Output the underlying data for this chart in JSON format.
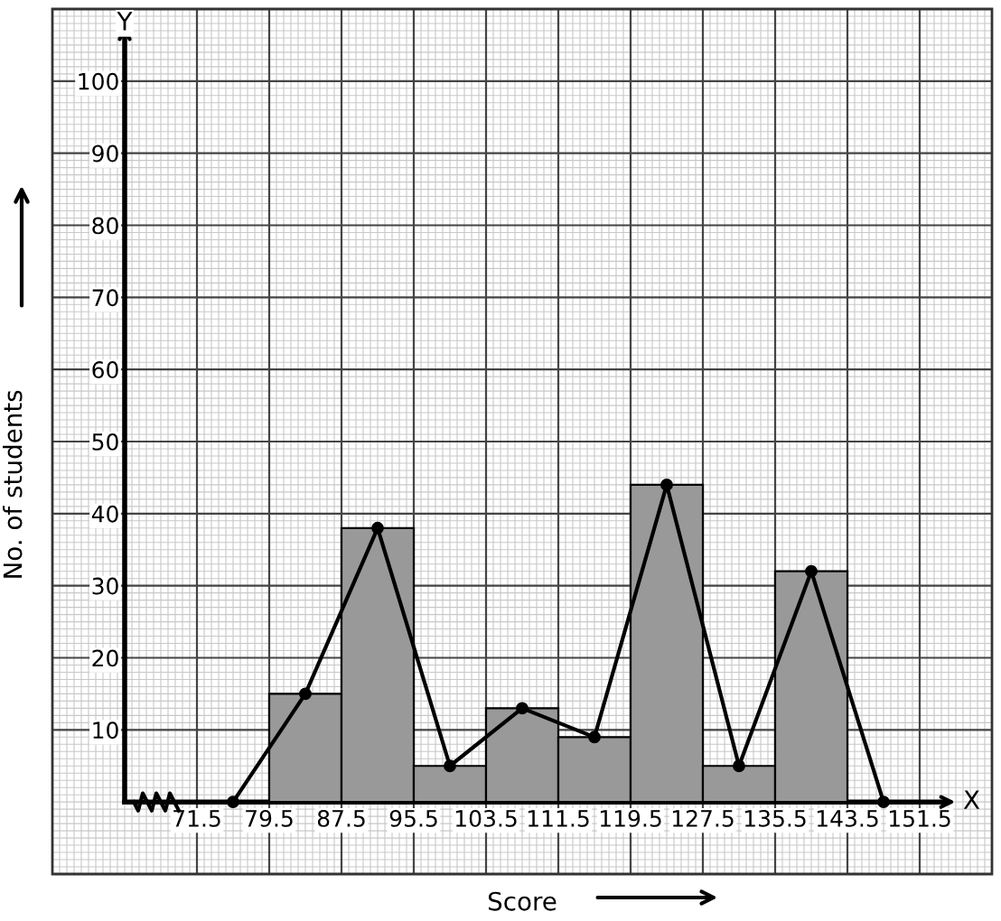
{
  "chart_data": {
    "type": "histogram",
    "xlabel": "Score",
    "ylabel": "No. of students",
    "color": "#999999",
    "bins": [
      79.5,
      87.5,
      95.5,
      103.5,
      111.5,
      119.5,
      127.5,
      135.5,
      143.5
    ],
    "values": [
      15,
      38,
      5,
      13,
      9,
      44,
      5,
      32
    ],
    "series": [
      {
        "type": "line",
        "color": "#000000",
        "marker": "circle",
        "x": [
          75.5,
          83.5,
          91.5,
          99.5,
          107.5,
          115.5,
          123.5,
          131.5,
          139.5,
          147.5
        ],
        "values": [
          0,
          15,
          38,
          5,
          13,
          9,
          44,
          5,
          32,
          0
        ]
      }
    ],
    "annotations": [
      "X",
      "Y"
    ],
    "xlim": [
      55.5,
      159.5
    ],
    "ylim": [
      -10,
      110
    ],
    "xticks": [
      71.5,
      79.5,
      87.5,
      95.5,
      103.5,
      111.5,
      119.5,
      127.5,
      135.5,
      143.5,
      151.5
    ],
    "yticks": [
      10,
      20,
      30,
      40,
      50,
      60,
      70,
      80,
      90,
      100
    ],
    "grid": true
  }
}
